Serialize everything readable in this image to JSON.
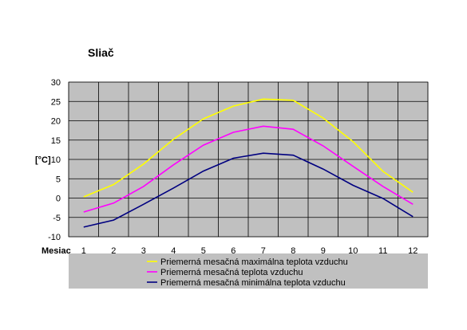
{
  "chart_data": {
    "type": "line",
    "title": "Sliač",
    "xlabel": "Mesiac",
    "ylabel": "[°C]",
    "x": [
      1,
      2,
      3,
      4,
      5,
      6,
      7,
      8,
      9,
      10,
      11,
      12
    ],
    "x_tick_labels": [
      "1",
      "2",
      "3",
      "4",
      "5",
      "6",
      "7",
      "8",
      "9",
      "10",
      "11",
      "12"
    ],
    "ylim": [
      -10,
      30
    ],
    "y_ticks": [
      -10,
      -5,
      0,
      5,
      10,
      15,
      20,
      25,
      30
    ],
    "grid": true,
    "legend_position": "bottom",
    "plot_background": "#c0c0c0",
    "series": [
      {
        "name": "Priemerná mesačná maximálna teplota vzduchu",
        "color": "#ffff00",
        "values": [
          0.3,
          3.5,
          8.8,
          15.2,
          20.5,
          23.8,
          25.6,
          25.3,
          20.7,
          14.6,
          6.9,
          1.5
        ]
      },
      {
        "name": "Priemerná mesačná teplota vzduchu",
        "color": "#ff00ff",
        "values": [
          -3.6,
          -1.3,
          3.0,
          8.6,
          13.7,
          17.0,
          18.6,
          17.8,
          13.5,
          8.2,
          3.0,
          -1.6
        ]
      },
      {
        "name": "Priemerná mesačná minimálna teplota vzduchu",
        "color": "#000080",
        "values": [
          -7.5,
          -5.7,
          -1.6,
          2.6,
          7.0,
          10.3,
          11.6,
          11.1,
          7.5,
          3.3,
          -0.1,
          -4.8
        ]
      }
    ]
  }
}
